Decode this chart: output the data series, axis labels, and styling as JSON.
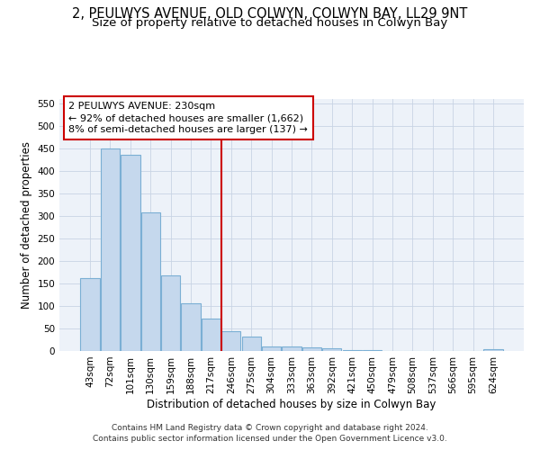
{
  "title": "2, PEULWYS AVENUE, OLD COLWYN, COLWYN BAY, LL29 9NT",
  "subtitle": "Size of property relative to detached houses in Colwyn Bay",
  "xlabel": "Distribution of detached houses by size in Colwyn Bay",
  "ylabel": "Number of detached properties",
  "categories": [
    "43sqm",
    "72sqm",
    "101sqm",
    "130sqm",
    "159sqm",
    "188sqm",
    "217sqm",
    "246sqm",
    "275sqm",
    "304sqm",
    "333sqm",
    "363sqm",
    "392sqm",
    "421sqm",
    "450sqm",
    "479sqm",
    "508sqm",
    "537sqm",
    "566sqm",
    "595sqm",
    "624sqm"
  ],
  "values": [
    163,
    450,
    436,
    308,
    168,
    107,
    73,
    44,
    32,
    11,
    11,
    8,
    7,
    2,
    2,
    1,
    1,
    1,
    1,
    1,
    5
  ],
  "bar_color": "#c5d8ed",
  "bar_edge_color": "#7bafd4",
  "vline_color": "#cc0000",
  "annotation_text": "2 PEULWYS AVENUE: 230sqm\n← 92% of detached houses are smaller (1,662)\n8% of semi-detached houses are larger (137) →",
  "annotation_box_color": "#ffffff",
  "annotation_box_edge": "#cc0000",
  "ylim": [
    0,
    560
  ],
  "yticks": [
    0,
    50,
    100,
    150,
    200,
    250,
    300,
    350,
    400,
    450,
    500,
    550
  ],
  "footer1": "Contains HM Land Registry data © Crown copyright and database right 2024.",
  "footer2": "Contains public sector information licensed under the Open Government Licence v3.0.",
  "bg_color": "#edf2f9",
  "title_fontsize": 10.5,
  "subtitle_fontsize": 9.5,
  "axis_fontsize": 8.5,
  "tick_fontsize": 7.5,
  "footer_fontsize": 6.5,
  "ann_fontsize": 8.0,
  "vline_pos": 6.5
}
